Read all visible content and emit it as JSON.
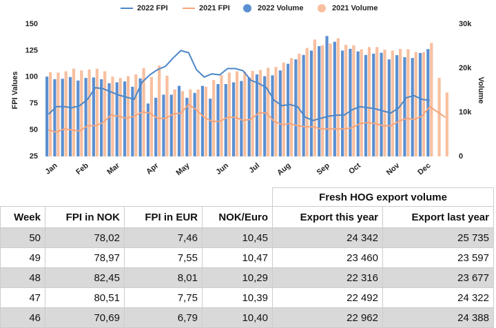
{
  "chart_data": {
    "type": "combo",
    "ylabel": "FPI Values",
    "y2label": "Volume",
    "categories": [
      null,
      "Jan",
      null,
      null,
      null,
      "Feb",
      null,
      null,
      null,
      "Mar",
      null,
      null,
      null,
      null,
      "Apr",
      null,
      null,
      null,
      "May",
      null,
      null,
      null,
      null,
      "Jun",
      null,
      null,
      null,
      "Jul",
      null,
      null,
      null,
      "Aug",
      null,
      null,
      null,
      null,
      "Sep",
      null,
      null,
      null,
      "Oct",
      null,
      null,
      null,
      null,
      "Nov",
      null,
      null,
      null,
      "Dec",
      null,
      null
    ],
    "ylim": [
      25,
      150
    ],
    "yticks": [
      25,
      50,
      75,
      100,
      125,
      150
    ],
    "y2lim": [
      0,
      30000
    ],
    "y2ticks": [
      0,
      {
        "value": 10000,
        "label": "10k"
      },
      {
        "value": 20000,
        "label": "20k"
      },
      {
        "value": 30000,
        "label": "30k"
      }
    ],
    "grid": false,
    "series": [
      {
        "name": "2022 FPI",
        "type": "line",
        "axis": "y",
        "color": "#4a86c8",
        "values": [
          65,
          72,
          72,
          71,
          73,
          79,
          90,
          89,
          86,
          83,
          81,
          79,
          95,
          102,
          107,
          110,
          118,
          125,
          123,
          107,
          100,
          103,
          102,
          108,
          108,
          106,
          97,
          94,
          90,
          78,
          73,
          74,
          72,
          62,
          59,
          61,
          63,
          64,
          64,
          69,
          72,
          71,
          70,
          68,
          66,
          70.69,
          80.51,
          82.45,
          78.97,
          78.02,
          null,
          null
        ]
      },
      {
        "name": "2021 FPI",
        "type": "line",
        "axis": "y",
        "color": "#f5a47c",
        "values": [
          50,
          48,
          51,
          50,
          49,
          54,
          54,
          57,
          64,
          63,
          61,
          63,
          67,
          66,
          61,
          61,
          65,
          66,
          74,
          69,
          62,
          58,
          58,
          62,
          62,
          59,
          60,
          66,
          66,
          58,
          55,
          56,
          54,
          53,
          53,
          51,
          51,
          51,
          51,
          52,
          56,
          57,
          56,
          54,
          54,
          58,
          61,
          60,
          63,
          72,
          67,
          62
        ]
      },
      {
        "name": "2022 Volume",
        "type": "bar",
        "axis": "y2",
        "color": "#5b8fd0",
        "values": [
          18100,
          17500,
          17600,
          18000,
          17200,
          17800,
          17900,
          17500,
          16600,
          16800,
          17000,
          15800,
          17700,
          12000,
          13300,
          14000,
          14000,
          16000,
          13300,
          14400,
          16000,
          13100,
          16400,
          16400,
          16800,
          17100,
          17900,
          18600,
          18200,
          18400,
          19500,
          21000,
          22000,
          23000,
          24000,
          25000,
          27300,
          26000,
          24000,
          24400,
          23800,
          23000,
          23300,
          23500,
          22000,
          22962,
          22492,
          22316,
          23460,
          24342,
          null,
          null
        ]
      },
      {
        "name": "2021 Volume",
        "type": "bar",
        "axis": "y2",
        "color": "#f8bf9f",
        "values": [
          19100,
          19000,
          19300,
          19900,
          19500,
          19700,
          19900,
          19300,
          18100,
          17800,
          18200,
          18600,
          20000,
          18000,
          20600,
          18300,
          15200,
          14800,
          15200,
          15200,
          15800,
          17300,
          18400,
          19000,
          19300,
          19200,
          19400,
          19600,
          20100,
          20300,
          21300,
          22300,
          23300,
          24600,
          26500,
          25200,
          25600,
          26800,
          25300,
          25200,
          24300,
          24800,
          24800,
          24200,
          24000,
          24388,
          24322,
          23677,
          23597,
          25735,
          17800,
          14500
        ]
      }
    ]
  },
  "table": {
    "group_header": "Fresh HOG export volume",
    "columns": [
      "Week",
      "FPI in NOK",
      "FPI in EUR",
      "NOK/Euro",
      "Export this year",
      "Export last year"
    ],
    "rows": [
      [
        "50",
        "78,02",
        "7,46",
        "10,45",
        "24 342",
        "25 735"
      ],
      [
        "49",
        "78,97",
        "7,55",
        "10,47",
        "23 460",
        "23 597"
      ],
      [
        "48",
        "82,45",
        "8,01",
        "10,29",
        "22 316",
        "23 677"
      ],
      [
        "47",
        "80,51",
        "7,75",
        "10,39",
        "22 492",
        "24 322"
      ],
      [
        "46",
        "70,69",
        "6,79",
        "10,40",
        "22 962",
        "24 388"
      ]
    ]
  }
}
